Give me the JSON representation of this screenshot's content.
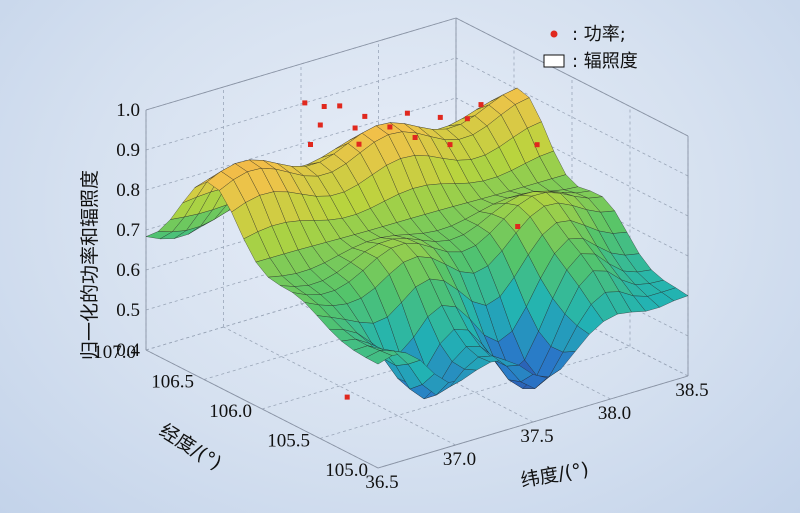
{
  "chart_data": {
    "type": "surface3d",
    "zlabel": "归一化的功率和辐照度",
    "xlabel": "纬度/(°)",
    "ylabel": "经度/(°)",
    "xlim": [
      36.5,
      38.5
    ],
    "ylim": [
      105.0,
      107.0
    ],
    "zlim": [
      0.4,
      1.0
    ],
    "x_ticks": [
      "36.5",
      "37.0",
      "37.5",
      "38.0",
      "38.5"
    ],
    "y_ticks": [
      "105.0",
      "105.5",
      "106.0",
      "106.5",
      "107.0"
    ],
    "z_ticks": [
      "0.4",
      "0.5",
      "0.6",
      "0.7",
      "0.8",
      "0.9",
      "1.0"
    ],
    "grid": true,
    "legend_position": "top-right",
    "legend": [
      {
        "marker": "red-dot",
        "label": ": 功率;"
      },
      {
        "marker": "white-box",
        "label": ": 辐照度"
      }
    ],
    "colormap": [
      "#2e3f9a",
      "#2a78c8",
      "#22b3b3",
      "#55c46a",
      "#b8d43e",
      "#f1c24a",
      "#f0a040"
    ],
    "surface_grid_size": [
      23,
      20
    ],
    "power_points": [
      {
        "lat": 37.3,
        "lon": 106.7,
        "value": 0.97
      },
      {
        "lat": 37.35,
        "lon": 106.6,
        "value": 0.97
      },
      {
        "lat": 37.45,
        "lon": 106.6,
        "value": 0.96
      },
      {
        "lat": 37.25,
        "lon": 106.5,
        "value": 0.95
      },
      {
        "lat": 37.4,
        "lon": 106.4,
        "value": 0.94
      },
      {
        "lat": 37.5,
        "lon": 106.45,
        "value": 0.95
      },
      {
        "lat": 37.15,
        "lon": 106.45,
        "value": 0.92
      },
      {
        "lat": 37.35,
        "lon": 106.3,
        "value": 0.92
      },
      {
        "lat": 37.55,
        "lon": 106.3,
        "value": 0.94
      },
      {
        "lat": 37.7,
        "lon": 106.35,
        "value": 0.95
      },
      {
        "lat": 37.6,
        "lon": 106.15,
        "value": 0.93
      },
      {
        "lat": 37.8,
        "lon": 106.2,
        "value": 0.95
      },
      {
        "lat": 37.75,
        "lon": 106.05,
        "value": 0.91
      },
      {
        "lat": 37.9,
        "lon": 106.1,
        "value": 0.95
      },
      {
        "lat": 38.1,
        "lon": 106.25,
        "value": 0.94
      },
      {
        "lat": 38.2,
        "lon": 105.9,
        "value": 0.88
      },
      {
        "lat": 37.85,
        "lon": 105.6,
        "value": 0.76
      },
      {
        "lat": 36.75,
        "lon": 105.6,
        "value": 0.46
      }
    ]
  }
}
